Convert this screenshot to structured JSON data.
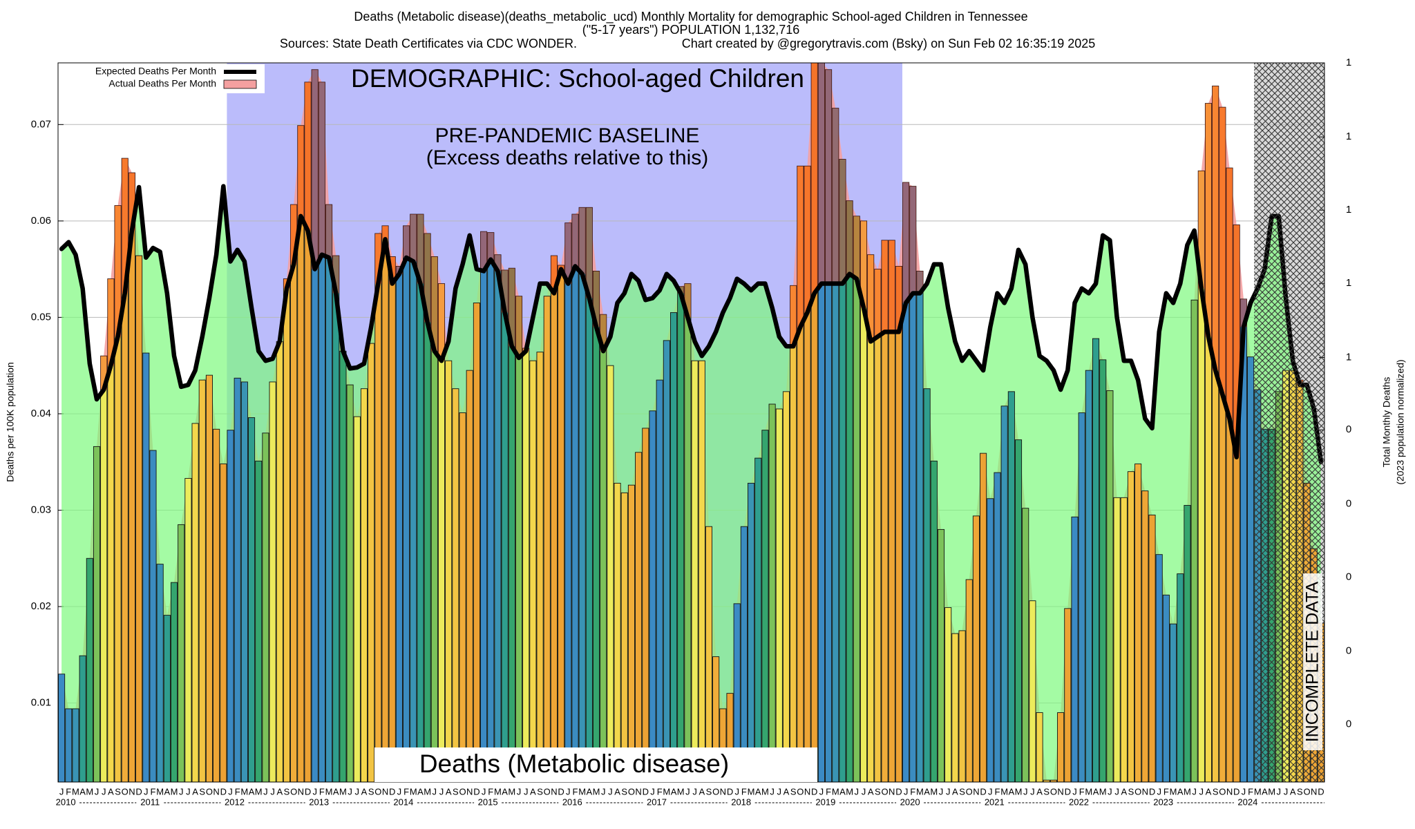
{
  "chart_data": {
    "type": "bar",
    "title": "Deaths (Metabolic disease)(deaths_metabolic_ucd) Monthly Mortality for demographic School-aged Children in Tennessee",
    "subtitle": "(\"5-17 years\") POPULATION 1,132,716",
    "source": "Sources: State Death Certificates via CDC WONDER.",
    "credit": "Chart created by @gregorytravis.com (Bsky) on Sun Feb 02 16:35:19 2025",
    "ylabel": "Deaths per 100K population",
    "y2label": [
      "Total Monthly Deaths",
      "(2023 population normalized)"
    ],
    "annotations": {
      "demographic": "DEMOGRAPHIC: School-aged Children",
      "baseline": "PRE-PANDEMIC BASELINE",
      "baseline_note": "(Excess deaths relative to this)",
      "cause": "Deaths (Metabolic disease)",
      "incomplete": "INCOMPLETE DATA"
    },
    "categories": [
      "J",
      "F",
      "M",
      "A",
      "M",
      "J",
      "J",
      "A",
      "S",
      "O",
      "N",
      "D",
      "J",
      "F",
      "M",
      "A",
      "M",
      "J",
      "J",
      "A",
      "S",
      "O",
      "N",
      "D",
      "J",
      "F",
      "M",
      "A",
      "M",
      "J",
      "J",
      "A",
      "S",
      "O",
      "N",
      "D",
      "J",
      "F",
      "M",
      "A",
      "M",
      "J",
      "J",
      "A",
      "S",
      "O",
      "N",
      "D",
      "J",
      "F",
      "M",
      "A",
      "M",
      "J",
      "J",
      "A",
      "S",
      "O",
      "N",
      "D",
      "J",
      "F",
      "M",
      "A",
      "M",
      "J",
      "J",
      "A",
      "S",
      "O",
      "N",
      "D",
      "J",
      "F",
      "M",
      "A",
      "M",
      "J",
      "J",
      "A",
      "S",
      "O",
      "N",
      "D",
      "J",
      "F",
      "M",
      "A",
      "M",
      "J",
      "J",
      "A",
      "S",
      "O",
      "N",
      "D",
      "J",
      "F",
      "M",
      "A",
      "M",
      "J",
      "J",
      "A",
      "S",
      "O",
      "N",
      "D",
      "J",
      "F",
      "M",
      "A",
      "M",
      "J",
      "J",
      "A",
      "S",
      "O",
      "N",
      "D",
      "J",
      "F",
      "M",
      "A",
      "M",
      "J",
      "J",
      "A",
      "S",
      "O",
      "N",
      "D",
      "J",
      "F",
      "M",
      "A",
      "M",
      "J",
      "J",
      "A",
      "S",
      "O",
      "N",
      "D",
      "J",
      "F",
      "M",
      "A",
      "M",
      "J",
      "J",
      "A",
      "S",
      "O",
      "N",
      "D",
      "J",
      "F",
      "M",
      "A",
      "M",
      "J",
      "J",
      "A",
      "S",
      "O",
      "N",
      "D",
      "J",
      "F",
      "M",
      "A",
      "M",
      "J",
      "J",
      "A",
      "S",
      "O",
      "N",
      "D"
    ],
    "years": [
      "2010",
      "2011",
      "2012",
      "2013",
      "2014",
      "2015",
      "2016",
      "2017",
      "2018",
      "2019",
      "2020",
      "2021",
      "2022",
      "2023",
      "2024"
    ],
    "series": [
      {
        "name": "Expected Deaths Per Month",
        "color": "#000000",
        "values": [
          0.0571,
          0.0578,
          0.0565,
          0.053,
          0.0452,
          0.0415,
          0.0425,
          0.045,
          0.048,
          0.0525,
          0.059,
          0.0635,
          0.0562,
          0.0572,
          0.0568,
          0.0525,
          0.046,
          0.0428,
          0.043,
          0.0445,
          0.048,
          0.052,
          0.0565,
          0.0636,
          0.0558,
          0.057,
          0.0558,
          0.051,
          0.0465,
          0.0455,
          0.0457,
          0.0475,
          0.053,
          0.0555,
          0.0605,
          0.059,
          0.055,
          0.0565,
          0.0562,
          0.0525,
          0.0465,
          0.0447,
          0.0448,
          0.0452,
          0.049,
          0.0535,
          0.0581,
          0.0535,
          0.0545,
          0.0562,
          0.0558,
          0.0535,
          0.0495,
          0.0465,
          0.0455,
          0.0475,
          0.053,
          0.0555,
          0.0585,
          0.055,
          0.0548,
          0.056,
          0.0548,
          0.0505,
          0.047,
          0.0458,
          0.0465,
          0.05,
          0.0535,
          0.0535,
          0.0525,
          0.055,
          0.0535,
          0.0553,
          0.0545,
          0.052,
          0.049,
          0.0465,
          0.048,
          0.0515,
          0.0525,
          0.0545,
          0.0538,
          0.0518,
          0.052,
          0.0528,
          0.0545,
          0.0538,
          0.0525,
          0.05,
          0.0475,
          0.046,
          0.047,
          0.0485,
          0.0505,
          0.052,
          0.054,
          0.0535,
          0.0528,
          0.0535,
          0.0535,
          0.051,
          0.048,
          0.047,
          0.047,
          0.049,
          0.0505,
          0.0525,
          0.0535,
          0.0535,
          0.0535,
          0.0535,
          0.0545,
          0.054,
          0.051,
          0.0475,
          0.048,
          0.0485,
          0.0485,
          0.0485,
          0.0515,
          0.0525,
          0.0525,
          0.0535,
          0.0555,
          0.0555,
          0.051,
          0.0475,
          0.0455,
          0.0465,
          0.0455,
          0.0445,
          0.049,
          0.0525,
          0.0515,
          0.053,
          0.057,
          0.0555,
          0.05,
          0.046,
          0.0455,
          0.0445,
          0.0425,
          0.0445,
          0.0515,
          0.053,
          0.0525,
          0.0535,
          0.0585,
          0.058,
          0.05,
          0.0455,
          0.0455,
          0.0435,
          0.0395,
          0.0385,
          0.0485,
          0.0525,
          0.0515,
          0.0535,
          0.0575,
          0.059,
          0.053,
          0.048,
          0.0445,
          0.042,
          0.0395,
          0.0355,
          0.049,
          0.0515,
          0.053,
          0.055,
          0.0605,
          0.0605,
          0.052,
          0.0455,
          0.043,
          0.043,
          0.0405,
          0.035
        ]
      },
      {
        "name": "Actual Deaths Per Month",
        "color": "#f4a0a0",
        "values": [
          0.013,
          0.0094,
          0.0094,
          0.0149,
          0.025,
          0.0366,
          0.046,
          0.054,
          0.0616,
          0.0665,
          0.065,
          0.0564,
          0.0463,
          0.0362,
          0.0244,
          0.0191,
          0.0225,
          0.0285,
          0.0333,
          0.039,
          0.0435,
          0.044,
          0.0384,
          0.0348,
          0.0383,
          0.0437,
          0.0433,
          0.0396,
          0.0351,
          0.038,
          0.0433,
          0.0475,
          0.054,
          0.0617,
          0.0699,
          0.0744,
          0.0757,
          0.0744,
          0.0617,
          0.0564,
          0.0465,
          0.043,
          0.0397,
          0.0426,
          0.0473,
          0.0587,
          0.0595,
          0.0563,
          0.0553,
          0.0595,
          0.0607,
          0.0607,
          0.0587,
          0.0563,
          0.0535,
          0.0455,
          0.0426,
          0.0401,
          0.0445,
          0.0515,
          0.0589,
          0.0588,
          0.0565,
          0.0549,
          0.0551,
          0.0522,
          0.0468,
          0.0455,
          0.0464,
          0.0522,
          0.0564,
          0.0554,
          0.0598,
          0.0607,
          0.0614,
          0.0614,
          0.0548,
          0.0503,
          0.045,
          0.0328,
          0.0318,
          0.0326,
          0.036,
          0.0385,
          0.0403,
          0.0435,
          0.0476,
          0.0505,
          0.0532,
          0.0535,
          0.0455,
          0.0455,
          0.0283,
          0.0148,
          0.0094,
          0.011,
          0.0203,
          0.0283,
          0.0328,
          0.0354,
          0.0383,
          0.041,
          0.0405,
          0.0423,
          0.0533,
          0.0657,
          0.0657,
          0.0764,
          0.0764,
          0.0757,
          0.0717,
          0.0664,
          0.0621,
          0.0605,
          0.06,
          0.0565,
          0.055,
          0.058,
          0.058,
          0.0553,
          0.064,
          0.0636,
          0.0548,
          0.0426,
          0.0351,
          0.028,
          0.0199,
          0.0172,
          0.0175,
          0.0228,
          0.0294,
          0.0359,
          0.0312,
          0.0339,
          0.0408,
          0.0423,
          0.0373,
          0.0302,
          0.0206,
          0.009,
          0.002,
          0.002,
          0.009,
          0.0198,
          0.0293,
          0.0401,
          0.0445,
          0.0478,
          0.0456,
          0.0424,
          0.0313,
          0.0313,
          0.034,
          0.0348,
          0.032,
          0.0295,
          0.0254,
          0.0212,
          0.0182,
          0.0234,
          0.0305,
          0.0518,
          0.0652,
          0.0722,
          0.074,
          0.0718,
          0.0655,
          0.0596,
          0.0519,
          0.0459,
          0.0425,
          0.0384,
          0.0384,
          0.0423,
          0.0445,
          0.0445,
          0.0435,
          0.0328,
          0.026,
          0.0183
        ]
      }
    ],
    "month_colors": [
      "#3b8ac4",
      "#3b8cc0",
      "#3a94b4",
      "#2f9e8e",
      "#35a56e",
      "#7cc25a",
      "#eceb5c",
      "#f3d74c",
      "#f2c443",
      "#f0ad3a",
      "#eea636",
      "#eca234"
    ],
    "expected_fill": "#7dfa7d",
    "excess_color": "#ff3c1e",
    "ylim": [
      0.0018,
      0.0764
    ],
    "yticks": [
      0.01,
      0.02,
      0.03,
      0.04,
      0.05,
      0.06,
      0.07
    ],
    "y2lim": [
      0.0204,
      0.865
    ],
    "y2ticks": [
      {
        "value": 0.865,
        "label": "1"
      },
      {
        "value": 0.778,
        "label": "1"
      },
      {
        "value": 0.692,
        "label": "1"
      },
      {
        "value": 0.606,
        "label": "1"
      },
      {
        "value": 0.519,
        "label": "1"
      },
      {
        "value": 0.434,
        "label": "0"
      },
      {
        "value": 0.347,
        "label": "0"
      },
      {
        "value": 0.261,
        "label": "0"
      },
      {
        "value": 0.174,
        "label": "0"
      },
      {
        "value": 0.088,
        "label": "0"
      }
    ],
    "grid": true,
    "legend": "top-left"
  }
}
